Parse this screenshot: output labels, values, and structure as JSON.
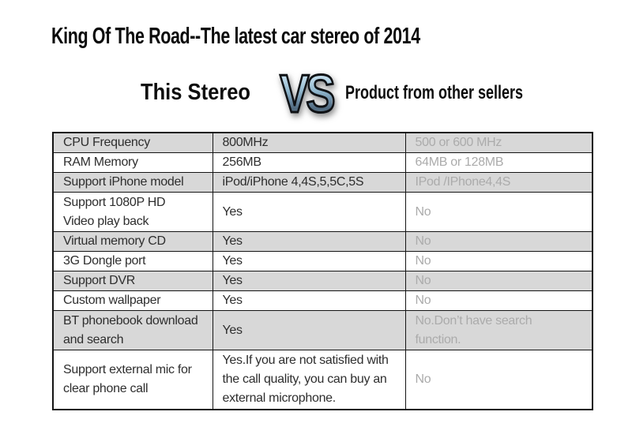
{
  "header": {
    "title": "King Of The Road--The latest car stereo of 2014"
  },
  "versus": {
    "left_label": "This Stereo",
    "vs_badge": "VS",
    "right_label": "Product from other sellers"
  },
  "comparison_table": {
    "column_keys": [
      "feature",
      "this_stereo",
      "other_sellers"
    ],
    "rows": [
      {
        "feature": "CPU Frequency",
        "this_stereo": "800MHz",
        "other_sellers": "500 or 600 MHz"
      },
      {
        "feature": "RAM Memory",
        "this_stereo": "256MB",
        "other_sellers": "64MB or 128MB"
      },
      {
        "feature": "Support iPhone model",
        "this_stereo": "iPod/iPhone 4,4S,5,5C,5S",
        "other_sellers": "IPod /IPhone4,4S"
      },
      {
        "feature": [
          "Support 1080P HD",
          "Video play back"
        ],
        "this_stereo": "Yes",
        "other_sellers": "No"
      },
      {
        "feature": "Virtual memory CD",
        "this_stereo": "Yes",
        "other_sellers": "No"
      },
      {
        "feature": "3G Dongle port",
        "this_stereo": "Yes",
        "other_sellers": "No"
      },
      {
        "feature": "Support DVR",
        "this_stereo": "Yes",
        "other_sellers": "No"
      },
      {
        "feature": "Custom wallpaper",
        "this_stereo": "Yes",
        "other_sellers": "No"
      },
      {
        "feature": [
          "BT phonebook download",
          "and search"
        ],
        "this_stereo": "Yes",
        "other_sellers": "No.Don’t have search function."
      },
      {
        "feature": [
          "Support external mic for",
          "clear phone call"
        ],
        "this_stereo": [
          "Yes.If you are not satisfied with",
          "the call quality, you can buy an",
          "external microphone."
        ],
        "other_sellers": "No"
      }
    ]
  },
  "colors": {
    "shaded_row_bg": "#d8d8d8",
    "other_sellers_text": "#ababab",
    "table_border": "#141414",
    "vs_badge_blue": "#8fb6cc"
  }
}
